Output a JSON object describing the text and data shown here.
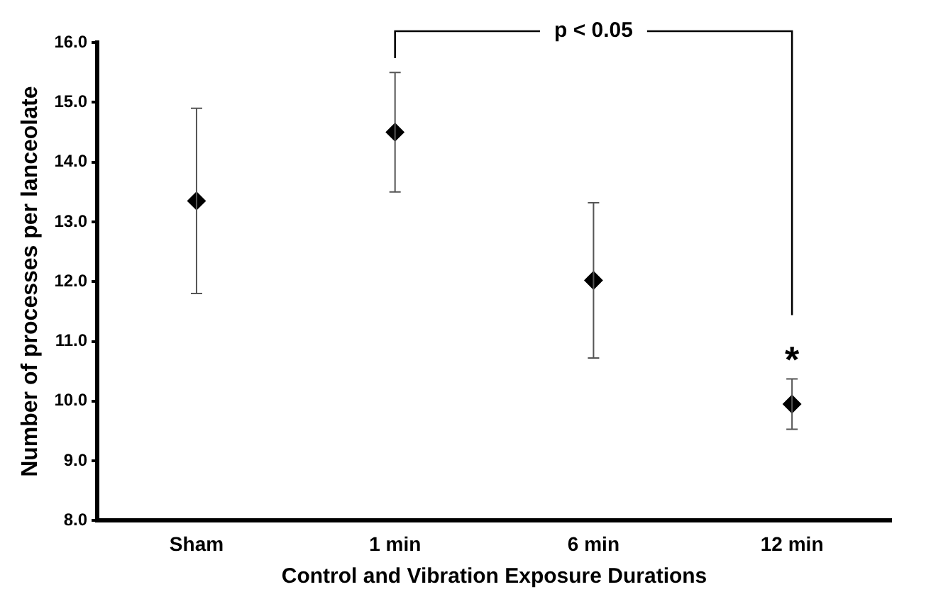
{
  "chart_data": {
    "type": "scatter",
    "xlabel": "Control and Vibration Exposure Durations",
    "ylabel": "Number of processes per lanceolate",
    "categories": [
      "Sham",
      "1 min",
      "6 min",
      "12 min"
    ],
    "values": [
      13.35,
      14.5,
      12.02,
      9.95
    ],
    "errors": [
      1.55,
      1.0,
      1.3,
      0.42
    ],
    "color": "#000000",
    "marker": "diamond",
    "grid": false,
    "legend": false,
    "ylim": [
      8,
      16
    ],
    "yticks": [
      {
        "value": 8,
        "label": "8.0"
      },
      {
        "value": 9,
        "label": "9.0"
      },
      {
        "value": 10,
        "label": "10.0"
      },
      {
        "value": 11,
        "label": "11.0"
      },
      {
        "value": 12,
        "label": "12.0"
      },
      {
        "value": 13,
        "label": "13.0"
      },
      {
        "value": 14,
        "label": "14.0"
      },
      {
        "value": 15,
        "label": "15.0"
      },
      {
        "value": 16,
        "label": "16.0"
      }
    ],
    "annotations": [
      "p < 0.05",
      "*"
    ]
  }
}
